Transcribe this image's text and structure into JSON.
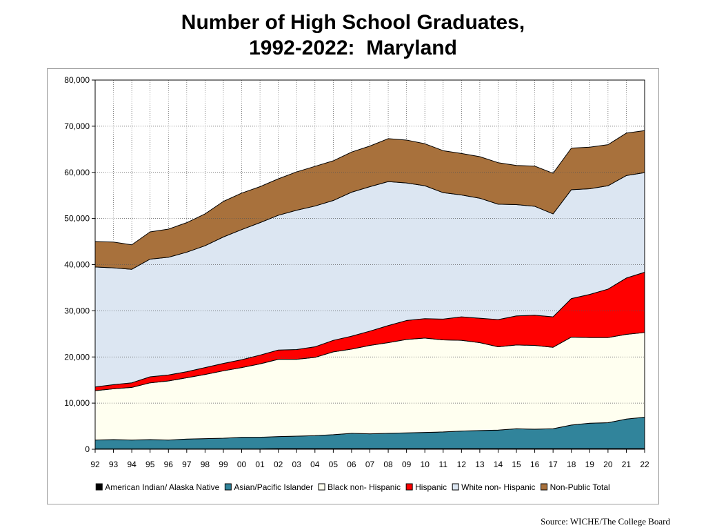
{
  "title": {
    "line1": "Number of High School Graduates,",
    "line2": "1992-2022:  Maryland"
  },
  "source": "Source: WICHE/The College Board",
  "chart_data": {
    "type": "area",
    "stacked": true,
    "title": "Number of High School Graduates, 1992-2022:  Maryland",
    "xlabel": "",
    "ylabel": "",
    "ylim": [
      0,
      80000
    ],
    "yticks": [
      "0",
      "10,000",
      "20,000",
      "30,000",
      "40,000",
      "50,000",
      "60,000",
      "70,000",
      "80,000"
    ],
    "categories": [
      "92",
      "93",
      "94",
      "95",
      "96",
      "97",
      "98",
      "99",
      "00",
      "01",
      "02",
      "03",
      "04",
      "05",
      "06",
      "07",
      "08",
      "09",
      "10",
      "11",
      "12",
      "13",
      "14",
      "15",
      "16",
      "17",
      "18",
      "19",
      "20",
      "21",
      "22"
    ],
    "grid": {
      "x": true,
      "y": true
    },
    "legend": "bottom",
    "series": [
      {
        "name": "American Indian/ Alaska Native",
        "color": "#000000",
        "values": [
          100,
          100,
          100,
          100,
          100,
          100,
          100,
          100,
          100,
          100,
          150,
          150,
          150,
          150,
          150,
          150,
          150,
          150,
          150,
          150,
          150,
          150,
          150,
          150,
          150,
          150,
          150,
          150,
          150,
          150,
          150
        ]
      },
      {
        "name": "Asian/Pacific Islander",
        "color": "#31849b",
        "values": [
          1900,
          2000,
          1900,
          2000,
          1900,
          2100,
          2200,
          2300,
          2500,
          2500,
          2600,
          2700,
          2800,
          3000,
          3300,
          3200,
          3300,
          3400,
          3500,
          3600,
          3800,
          3900,
          4000,
          4300,
          4200,
          4300,
          5100,
          5500,
          5600,
          6400,
          6800
        ]
      },
      {
        "name": "Black non- Hispanic",
        "color": "#fffff0",
        "values": [
          10700,
          11000,
          11400,
          12300,
          12800,
          13300,
          13900,
          14600,
          15100,
          15900,
          16750,
          16650,
          16950,
          17950,
          18250,
          19150,
          19650,
          20250,
          20450,
          19950,
          19650,
          19050,
          18050,
          18150,
          18150,
          17650,
          19050,
          18550,
          18450,
          18350,
          18350
        ]
      },
      {
        "name": "Hispanic",
        "color": "#ff0000",
        "values": [
          800,
          900,
          1000,
          1300,
          1300,
          1300,
          1500,
          1600,
          1700,
          1900,
          2000,
          2100,
          2300,
          2500,
          2800,
          3100,
          3700,
          4100,
          4200,
          4500,
          5100,
          5300,
          5900,
          6300,
          6550,
          6600,
          8350,
          9350,
          10500,
          12200,
          13050
        ]
      },
      {
        "name": "White non- Hispanic",
        "color": "#dce6f2",
        "values": [
          26000,
          25300,
          24600,
          25500,
          25500,
          25900,
          26400,
          27400,
          28200,
          28700,
          29200,
          30200,
          30500,
          30300,
          31200,
          31300,
          31200,
          29800,
          28800,
          27400,
          26400,
          26000,
          25000,
          24100,
          23600,
          22300,
          23600,
          22900,
          22400,
          22200,
          21600
        ]
      },
      {
        "name": "Non-Public Total",
        "color": "#a8713c",
        "values": [
          5500,
          5600,
          5300,
          5900,
          6100,
          6400,
          6900,
          7700,
          7900,
          7800,
          7900,
          8300,
          8600,
          8600,
          8700,
          8800,
          9300,
          9300,
          9100,
          9100,
          9000,
          9000,
          9000,
          8500,
          8700,
          8800,
          9000,
          9000,
          8900,
          9200,
          9100
        ]
      }
    ]
  }
}
